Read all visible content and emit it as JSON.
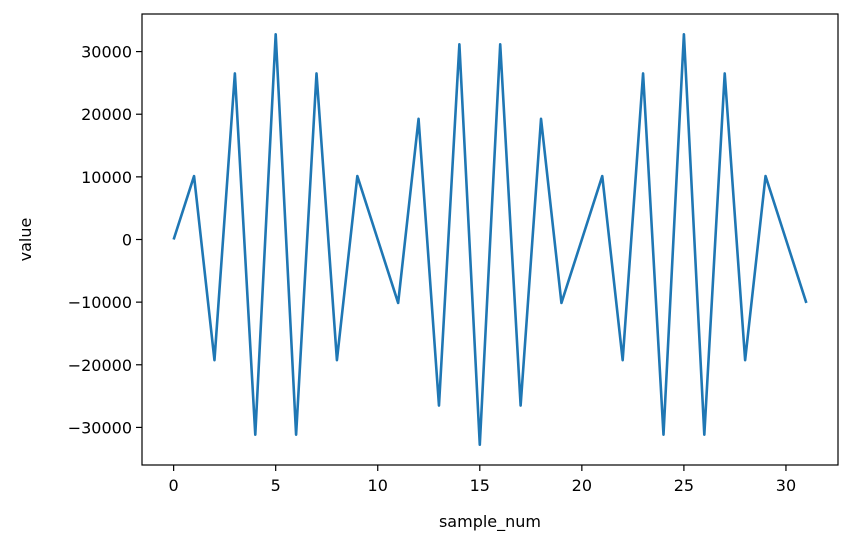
{
  "chart_data": {
    "type": "line",
    "title": "",
    "xlabel": "sample_num",
    "ylabel": "value",
    "xlim": [
      -1.55,
      32.55
    ],
    "ylim": [
      -36000,
      36000
    ],
    "xticks": [
      0,
      5,
      10,
      15,
      20,
      25,
      30
    ],
    "xtick_labels": [
      "0",
      "5",
      "10",
      "15",
      "20",
      "25",
      "30"
    ],
    "yticks": [
      -30000,
      -20000,
      -10000,
      0,
      10000,
      20000,
      30000
    ],
    "ytick_labels": [
      "−30000",
      "−20000",
      "−10000",
      "0",
      "10000",
      "20000",
      "30000"
    ],
    "grid": false,
    "line_color": "#1f77b4",
    "series": [
      {
        "x": [
          0,
          1,
          2,
          3,
          4,
          5,
          6,
          7,
          8,
          9,
          10,
          11,
          12,
          13,
          14,
          15,
          16,
          17,
          18,
          19,
          20,
          21,
          22,
          23,
          24,
          25,
          26,
          27,
          28,
          29,
          30,
          31
        ],
        "values": [
          0,
          10126,
          -19261,
          26510,
          -31163,
          32767,
          -31163,
          26510,
          -19261,
          10126,
          0,
          -10126,
          19261,
          -26510,
          31163,
          -32767,
          31163,
          -26510,
          19261,
          -10126,
          0,
          10126,
          -19261,
          26510,
          -31163,
          32767,
          -31163,
          26510,
          -19261,
          10126,
          0,
          -10126
        ]
      }
    ]
  }
}
